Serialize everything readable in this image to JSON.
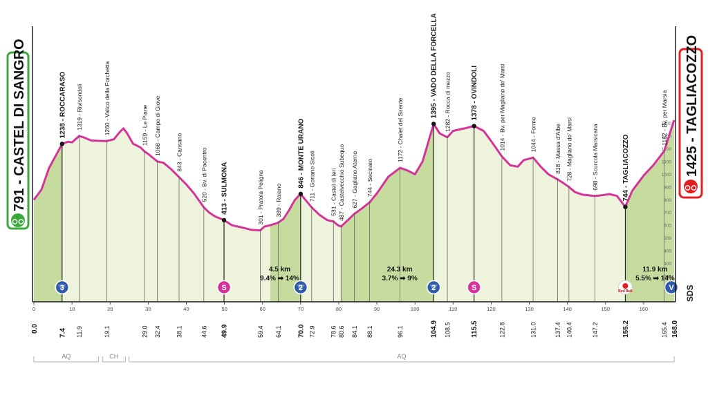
{
  "chart_data": {
    "type": "area",
    "title": "",
    "xlabel": "",
    "ylabel": "",
    "xlim": [
      0,
      168
    ],
    "ylim": [
      0,
      1500
    ],
    "y_ticks": [
      "1400",
      "1300",
      "1200",
      "1100",
      "1000",
      "900",
      "800",
      "700",
      "600",
      "500",
      "400",
      "300",
      "200",
      "100"
    ],
    "x_ticks": [
      "0",
      "10",
      "20",
      "30",
      "40",
      "50",
      "60",
      "70",
      "80",
      "90",
      "100",
      "110",
      "120",
      "130",
      "140",
      "150",
      "160"
    ],
    "colors": {
      "line": "#d5339a",
      "fill_light": "#eef3dc",
      "fill_climb": "#b8d48a",
      "start": "#3aa83a",
      "finish": "#e02020"
    },
    "start": {
      "name": "CASTEL DI SANGRO",
      "alt": "791"
    },
    "finish": {
      "name": "TAGLIACOZZO",
      "alt": "1425"
    },
    "profile": [
      [
        0,
        800
      ],
      [
        2,
        880
      ],
      [
        4,
        1050
      ],
      [
        6,
        1160
      ],
      [
        7.4,
        1238
      ],
      [
        9,
        1255
      ],
      [
        10,
        1250
      ],
      [
        11.9,
        1300
      ],
      [
        13,
        1290
      ],
      [
        15,
        1265
      ],
      [
        17,
        1262
      ],
      [
        19.1,
        1260
      ],
      [
        21,
        1275
      ],
      [
        22.5,
        1330
      ],
      [
        23.5,
        1360
      ],
      [
        24.5,
        1320
      ],
      [
        26,
        1240
      ],
      [
        28,
        1210
      ],
      [
        29,
        1180
      ],
      [
        30,
        1159
      ],
      [
        32.4,
        1100
      ],
      [
        34,
        1090
      ],
      [
        36,
        1040
      ],
      [
        38,
        980
      ],
      [
        40,
        920
      ],
      [
        42,
        850
      ],
      [
        44.6,
        740
      ],
      [
        46,
        700
      ],
      [
        47.5,
        670
      ],
      [
        49.9,
        640
      ],
      [
        52,
        600
      ],
      [
        55,
        580
      ],
      [
        57,
        565
      ],
      [
        59.4,
        560
      ],
      [
        60.5,
        590
      ],
      [
        62,
        600
      ],
      [
        64.1,
        620
      ],
      [
        65.5,
        650
      ],
      [
        67,
        720
      ],
      [
        68.5,
        800
      ],
      [
        70,
        846
      ],
      [
        71.5,
        790
      ],
      [
        72.9,
        740
      ],
      [
        75,
        680
      ],
      [
        77,
        640
      ],
      [
        78.6,
        630
      ],
      [
        79.8,
        600
      ],
      [
        80.6,
        590
      ],
      [
        82,
        630
      ],
      [
        84.1,
        690
      ],
      [
        86,
        730
      ],
      [
        88.1,
        780
      ],
      [
        90,
        850
      ],
      [
        93,
        980
      ],
      [
        96.1,
        1050
      ],
      [
        98,
        1030
      ],
      [
        100,
        1000
      ],
      [
        102,
        1100
      ],
      [
        104.9,
        1395
      ],
      [
        106.5,
        1320
      ],
      [
        108.5,
        1290
      ],
      [
        110,
        1340
      ],
      [
        113,
        1360
      ],
      [
        115.5,
        1378
      ],
      [
        118,
        1340
      ],
      [
        120,
        1260
      ],
      [
        122.8,
        1140
      ],
      [
        125,
        1070
      ],
      [
        127,
        1060
      ],
      [
        128.5,
        1110
      ],
      [
        131,
        1130
      ],
      [
        133,
        1060
      ],
      [
        135,
        1000
      ],
      [
        137.4,
        960
      ],
      [
        139,
        930
      ],
      [
        140.4,
        900
      ],
      [
        142,
        860
      ],
      [
        144,
        840
      ],
      [
        147.2,
        830
      ],
      [
        149,
        835
      ],
      [
        151,
        845
      ],
      [
        153,
        830
      ],
      [
        155.2,
        744
      ],
      [
        157,
        870
      ],
      [
        160,
        990
      ],
      [
        162.5,
        1070
      ],
      [
        165.4,
        1182
      ],
      [
        168,
        1425
      ]
    ],
    "km_labels": [
      {
        "km": 7.4,
        "label": "7.4",
        "bold": true
      },
      {
        "km": 11.9,
        "label": "11.9"
      },
      {
        "km": 19.1,
        "label": "19.1"
      },
      {
        "km": 29.0,
        "label": "29.0"
      },
      {
        "km": 32.4,
        "label": "32.4"
      },
      {
        "km": 38.1,
        "label": "38.1"
      },
      {
        "km": 44.6,
        "label": "44.6"
      },
      {
        "km": 49.9,
        "label": "49.9",
        "bold": true
      },
      {
        "km": 59.4,
        "label": "59.4"
      },
      {
        "km": 64.1,
        "label": "64.1"
      },
      {
        "km": 70.0,
        "label": "70.0",
        "bold": true
      },
      {
        "km": 72.9,
        "label": "72.9"
      },
      {
        "km": 78.6,
        "label": "78.6"
      },
      {
        "km": 80.6,
        "label": "80.6"
      },
      {
        "km": 84.1,
        "label": "84.1"
      },
      {
        "km": 88.1,
        "label": "88.1"
      },
      {
        "km": 96.1,
        "label": "96.1"
      },
      {
        "km": 104.9,
        "label": "104.9",
        "bold": true
      },
      {
        "km": 108.5,
        "label": "108.5"
      },
      {
        "km": 115.5,
        "label": "115.5",
        "bold": true
      },
      {
        "km": 122.8,
        "label": "122.8"
      },
      {
        "km": 131.0,
        "label": "131.0"
      },
      {
        "km": 137.4,
        "label": "137.4"
      },
      {
        "km": 140.4,
        "label": "140.4"
      },
      {
        "km": 147.2,
        "label": "147.2"
      },
      {
        "km": 155.2,
        "label": "155.2",
        "bold": true
      },
      {
        "km": 165.4,
        "label": "165.4"
      }
    ],
    "places": [
      {
        "km": 7.4,
        "alt": 1238,
        "label": "1238 - ROCCARASO",
        "bold": true,
        "dot": true
      },
      {
        "km": 11.9,
        "alt": 1300,
        "label": "1319 - Rivisondoli"
      },
      {
        "km": 19.1,
        "alt": 1260,
        "label": "1260 - Valico della Forchetta"
      },
      {
        "km": 29.0,
        "alt": 1180,
        "label": "1159 - Le Piane"
      },
      {
        "km": 32.4,
        "alt": 1100,
        "label": "1068 - Campo di Giove"
      },
      {
        "km": 38.1,
        "alt": 980,
        "label": "843 - Cansano"
      },
      {
        "km": 44.6,
        "alt": 740,
        "label": "520 - Bv. di Pacentro"
      },
      {
        "km": 49.9,
        "alt": 640,
        "label": "413 - SULMONA",
        "bold": true,
        "dot": true
      },
      {
        "km": 59.4,
        "alt": 560,
        "label": "301 - Pratola Peligna"
      },
      {
        "km": 64.1,
        "alt": 620,
        "label": "389 - Raiano"
      },
      {
        "km": 70.0,
        "alt": 846,
        "label": "846 - MONTE URANO",
        "bold": true,
        "dot": true
      },
      {
        "km": 72.9,
        "alt": 740,
        "label": "711 - Goriano Sicoli"
      },
      {
        "km": 78.6,
        "alt": 630,
        "label": "531 - Castel di Ieri"
      },
      {
        "km": 80.6,
        "alt": 590,
        "label": "487 - Castelvecchio Subequo"
      },
      {
        "km": 84.1,
        "alt": 690,
        "label": "627 - Gagliano Aterno"
      },
      {
        "km": 88.1,
        "alt": 780,
        "label": "744 - Secinaro"
      },
      {
        "km": 96.1,
        "alt": 1050,
        "label": "1172 - Chalet del Sirente"
      },
      {
        "km": 104.9,
        "alt": 1395,
        "label": "1395 - VADO DELLA FORCELLA",
        "bold": true,
        "dot": true
      },
      {
        "km": 108.5,
        "alt": 1290,
        "label": "1282 - Rocca di mezzo"
      },
      {
        "km": 115.5,
        "alt": 1378,
        "label": "1378 - OVINDOLI",
        "bold": true,
        "dot": true
      },
      {
        "km": 122.8,
        "alt": 1140,
        "label": "1014 - Bv. per Magliano de' Marsi"
      },
      {
        "km": 131.0,
        "alt": 1130,
        "label": "1044 - Forme"
      },
      {
        "km": 137.4,
        "alt": 960,
        "label": "818 - Massa d'Albe"
      },
      {
        "km": 140.4,
        "alt": 900,
        "label": "728 - Magliano de' Marsi"
      },
      {
        "km": 147.2,
        "alt": 830,
        "label": "698 - Scurcola Marsicana"
      },
      {
        "km": 155.2,
        "alt": 744,
        "label": "744 - TAGLIACOZZO",
        "bold": true,
        "dot": true
      },
      {
        "km": 165.4,
        "alt": 1182,
        "label": "1182 - Bv. per Marsia"
      }
    ],
    "climbs": [
      {
        "from": 0,
        "to": 7.4,
        "symbol": "3",
        "kind": "gpm"
      },
      {
        "from": 62,
        "to": 70,
        "symbol": "2",
        "kind": "gpm"
      },
      {
        "from": 80.6,
        "to": 104.9,
        "symbol": "2",
        "kind": "gpm"
      },
      {
        "from": 155.2,
        "to": 168,
        "symbol": "",
        "kind": "finish"
      }
    ],
    "markers": [
      {
        "km": 7.4,
        "kind": "gpm",
        "text": "3"
      },
      {
        "km": 49.9,
        "kind": "sprint",
        "text": "S"
      },
      {
        "km": 70.0,
        "kind": "gpm",
        "text": "2"
      },
      {
        "km": 104.9,
        "kind": "gpm",
        "text": "2"
      },
      {
        "km": 115.5,
        "kind": "sprint",
        "text": "S"
      },
      {
        "km": 155.2,
        "kind": "redbull",
        "text": "Red Bull"
      },
      {
        "km": 168,
        "kind": "finish",
        "text": "V"
      }
    ],
    "annotations": [
      {
        "km": 64.5,
        "line1": "4.5 km",
        "line2": "9.4% ➡ 14%"
      },
      {
        "km": 96,
        "line1": "24.3 km",
        "line2": "3.7% ➡ 9%"
      },
      {
        "km": 163,
        "line1": "11.9 km",
        "line2": "5.5% ➡ 14%"
      }
    ],
    "regions": [
      {
        "from": 0,
        "to": 17,
        "label": "AQ"
      },
      {
        "from": 18,
        "to": 24,
        "label": "CH"
      },
      {
        "from": 25,
        "to": 168,
        "label": "AQ"
      }
    ],
    "logo": "SDS"
  }
}
